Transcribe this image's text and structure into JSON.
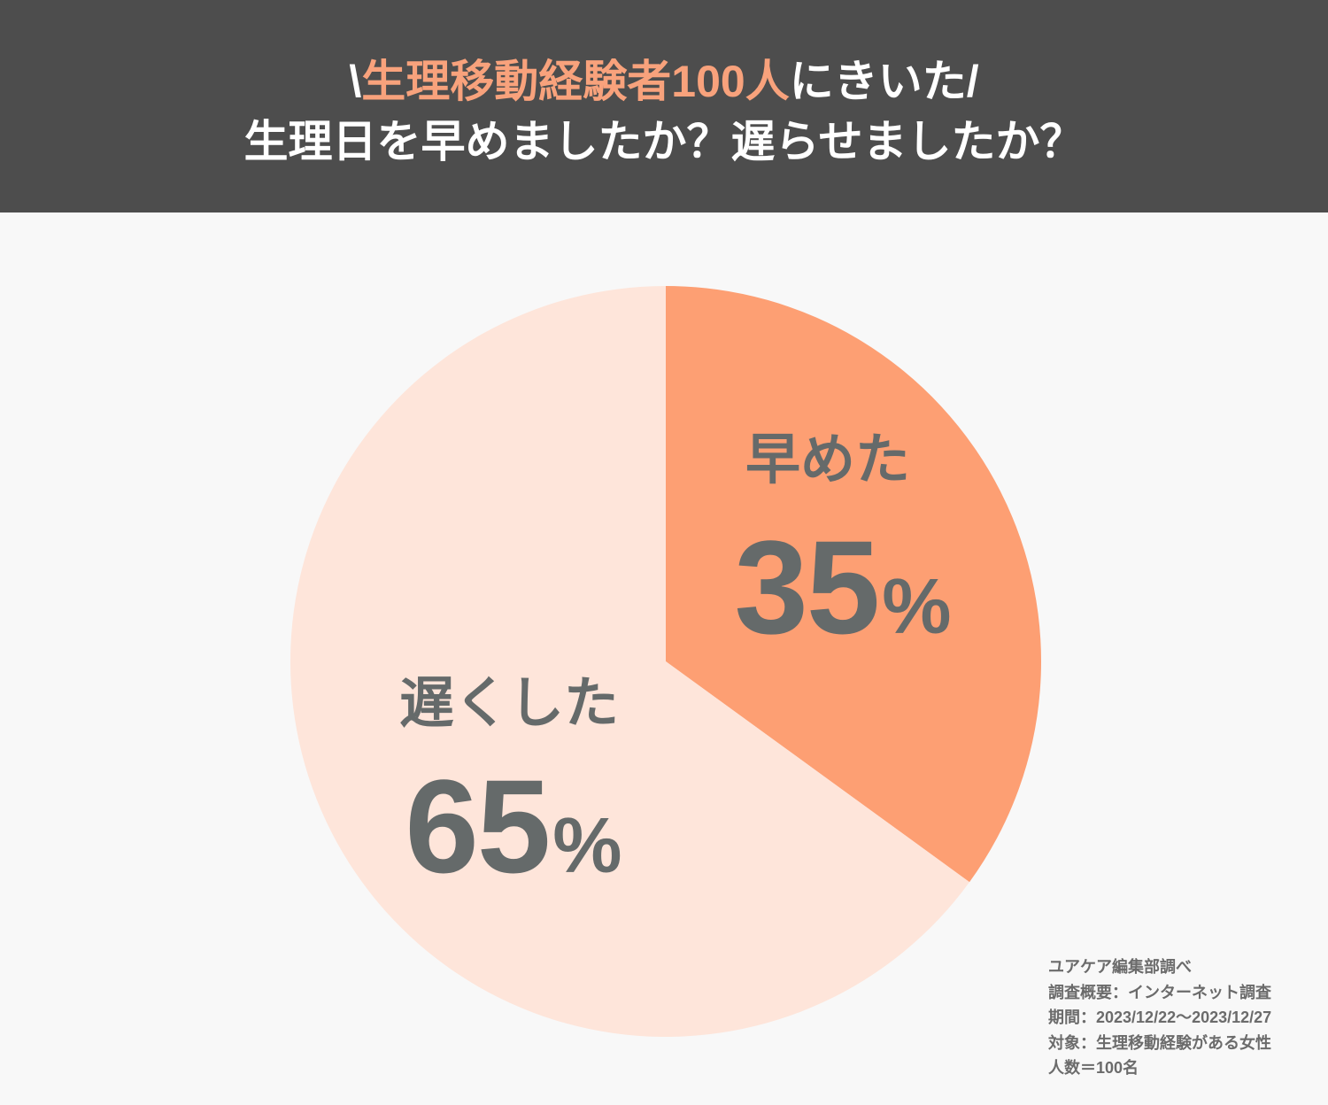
{
  "header": {
    "title_prefix": "\\",
    "title_highlight": "生理移動経験者100人",
    "title_suffix": "にきいた/",
    "subtitle": "生理日を早めましたか？遅らせましたか？"
  },
  "colors": {
    "header_bg": "#4d4d4d",
    "title_highlight": "#f8a27c",
    "title_text": "#ffffff",
    "background": "#f8f8f8",
    "label_text": "#656a6a"
  },
  "chart_data": {
    "type": "pie",
    "slices": [
      {
        "label": "早めた",
        "value": 35,
        "unit": "%",
        "color": "#fd9f73"
      },
      {
        "label": "遅くした",
        "value": 65,
        "unit": "%",
        "color": "#fee5da"
      }
    ]
  },
  "footnote": {
    "lines": [
      "ユアケア編集部調べ",
      "調査概要：インターネット調査",
      "期間：2023/12/22～2023/12/27",
      "対象：生理移動経験がある女性",
      "人数＝100名"
    ]
  }
}
